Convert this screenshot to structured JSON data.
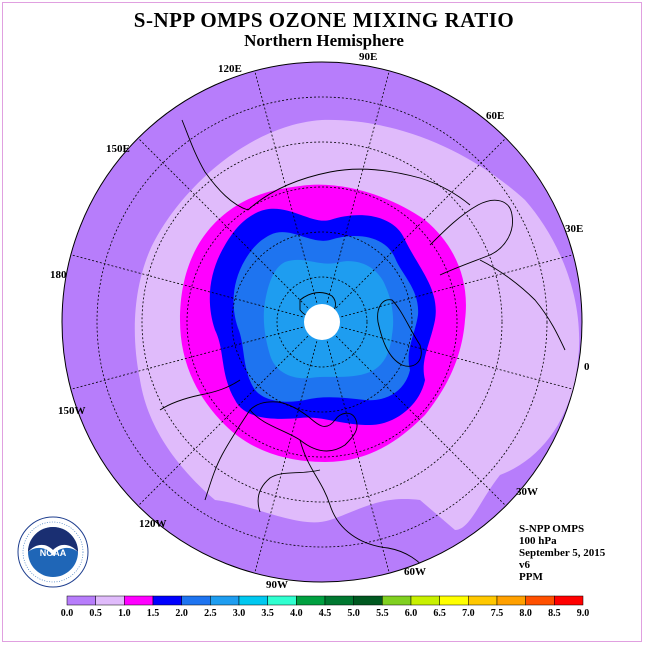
{
  "title": "S-NPP OMPS OZONE MIXING RATIO",
  "subtitle": "Northern Hemisphere",
  "longitude_labels": [
    "90E",
    "60E",
    "30E",
    "0",
    "30W",
    "60W",
    "90W",
    "120W",
    "150W",
    "180",
    "150E",
    "120E"
  ],
  "info": {
    "instrument": "S-NPP OMPS",
    "level": "100 hPa",
    "date": "September 5, 2015",
    "version": "v6",
    "units": "PPM"
  },
  "logo": {
    "text": "NOAA",
    "ring_text": "NATIONAL OCEANIC AND ATMOSPHERIC ADMINISTRATION · U.S. DEPARTMENT OF COMMERCE"
  },
  "colorbar": {
    "ticks": [
      "0.0",
      "0.5",
      "1.0",
      "1.5",
      "2.0",
      "2.5",
      "3.0",
      "3.5",
      "4.0",
      "4.5",
      "5.0",
      "5.5",
      "6.0",
      "6.5",
      "7.0",
      "7.5",
      "8.0",
      "8.5",
      "9.0"
    ],
    "colors": [
      "#b77dfb",
      "#e0bbfb",
      "#ff00ff",
      "#0000ff",
      "#1e74f0",
      "#1e9df0",
      "#00c8f0",
      "#30ffd0",
      "#00a040",
      "#007830",
      "#005820",
      "#80d020",
      "#c8f000",
      "#ffff00",
      "#ffc800",
      "#ffa000",
      "#ff5000",
      "#ff0000",
      "#8b4513"
    ]
  },
  "colors": {
    "band_0_0.5": "#b77dfb",
    "band_0.5_1.0": "#e0bbfb",
    "band_1.0_1.5": "#ff00ff",
    "band_1.5_2.0": "#0000ff",
    "band_2.0_2.5": "#1e74f0",
    "band_2.5_3.0": "#1e9df0",
    "pole_hole": "#ffffff"
  }
}
